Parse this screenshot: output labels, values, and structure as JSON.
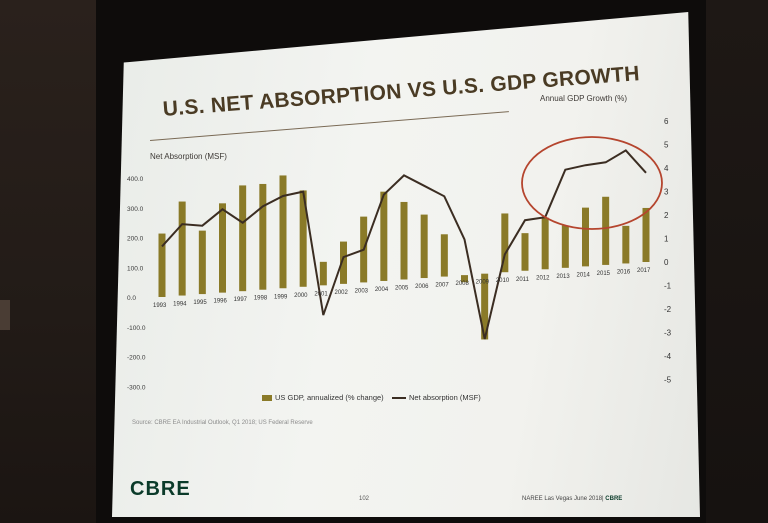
{
  "slide": {
    "title": "U.S. NET ABSORPTION VS U.S. GDP GROWTH",
    "left_axis_label": "Net Absorption (MSF)",
    "right_axis_label": "Annual GDP Growth (%)",
    "legend_bar": "US GDP, annualized (% change)",
    "legend_line": "Net absorption (MSF)",
    "source": "Source: CBRE EA Industrial Outlook, Q1 2018; US Federal Reserve",
    "logo": "CBRE",
    "page_number": "102",
    "footer_event": "NAREE Las Vegas June 2018|",
    "footer_brand": "CBRE"
  },
  "colors": {
    "bar": "#8a7a28",
    "line": "#3b2d22",
    "oval": "#b5452e",
    "logo": "#0b3b2a"
  },
  "chart_data": {
    "type": "bar",
    "categories": [
      "1993",
      "1994",
      "1995",
      "1996",
      "1997",
      "1998",
      "1999",
      "2000",
      "2001",
      "2002",
      "2003",
      "2004",
      "2005",
      "2006",
      "2007",
      "2008",
      "2009",
      "2010",
      "2011",
      "2012",
      "2013",
      "2014",
      "2015",
      "2016",
      "2017"
    ],
    "series": [
      {
        "name": "US GDP, annualized (% change)",
        "axis": "right",
        "values": [
          2.7,
          4.0,
          2.7,
          3.8,
          4.5,
          4.5,
          4.8,
          4.1,
          1.0,
          1.8,
          2.8,
          3.8,
          3.3,
          2.7,
          1.8,
          -0.3,
          -2.8,
          2.5,
          1.6,
          2.2,
          1.8,
          2.5,
          2.9,
          1.6,
          2.3
        ]
      },
      {
        "name": "Net absorption (MSF)",
        "axis": "left",
        "values": [
          170,
          240,
          230,
          280,
          230,
          280,
          310,
          320,
          -100,
          90,
          110,
          290,
          350,
          310,
          270,
          120,
          -220,
          60,
          170,
          175,
          330,
          340,
          345,
          380,
          300
        ]
      }
    ],
    "left_ticks": [
      "400.0",
      "300.0",
      "200.0",
      "100.0",
      "0.0",
      "-100.0",
      "-200.0",
      "-300.0"
    ],
    "right_ticks": [
      "6",
      "5",
      "4",
      "3",
      "2",
      "1",
      "0",
      "-1",
      "-2",
      "-3",
      "-4",
      "-5"
    ],
    "ylim_left": [
      -300,
      400
    ],
    "ylim_right": [
      -5,
      6
    ]
  }
}
